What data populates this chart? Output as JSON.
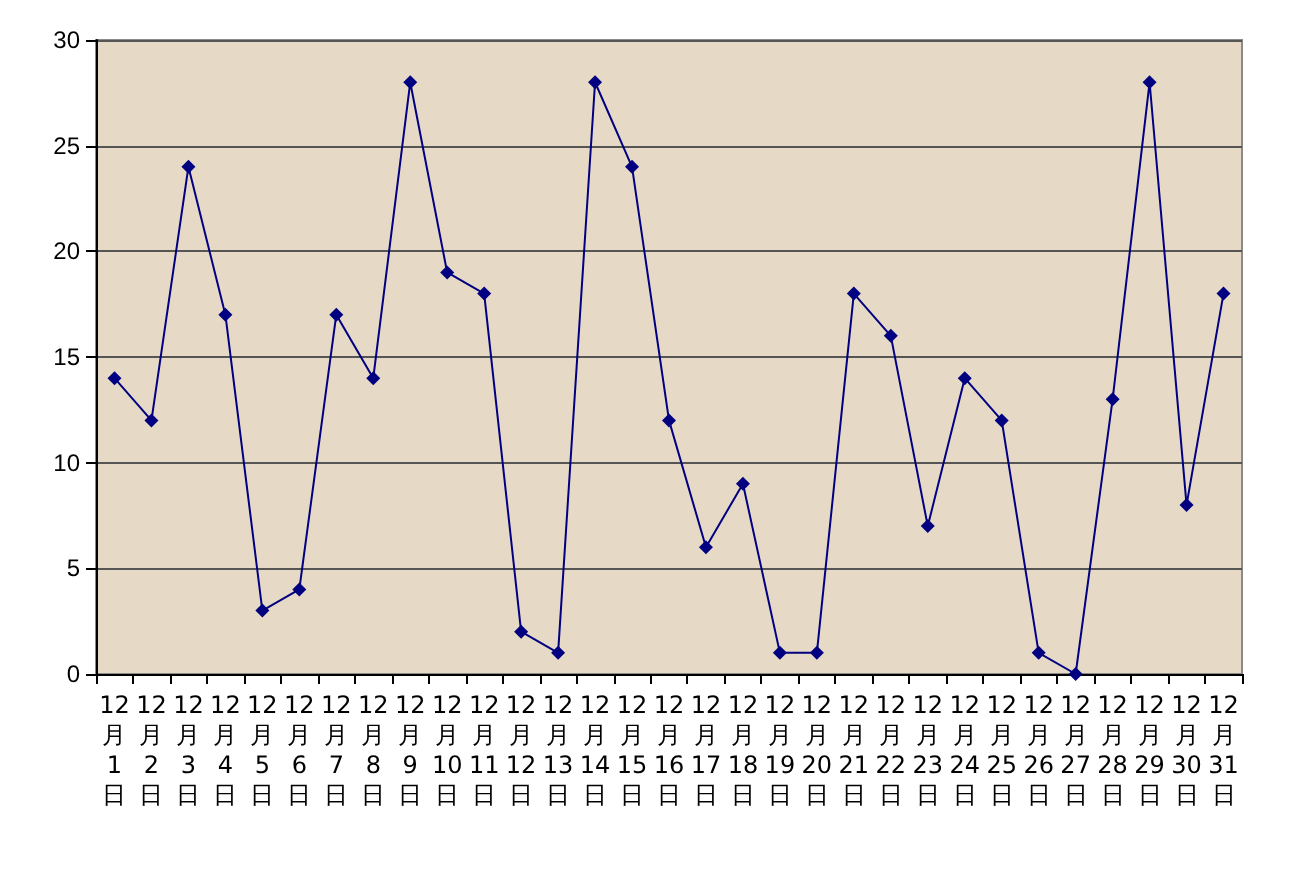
{
  "chart_data": {
    "type": "line",
    "categories": [
      "12月1日",
      "12月2日",
      "12月3日",
      "12月4日",
      "12月5日",
      "12月6日",
      "12月7日",
      "12月8日",
      "12月9日",
      "12月10日",
      "12月11日",
      "12月12日",
      "12月13日",
      "12月14日",
      "12月15日",
      "12月16日",
      "12月17日",
      "12月18日",
      "12月19日",
      "12月20日",
      "12月21日",
      "12月22日",
      "12月23日",
      "12月24日",
      "12月25日",
      "12月26日",
      "12月27日",
      "12月28日",
      "12月29日",
      "12月30日",
      "12月31日"
    ],
    "series": [
      {
        "color": "#000080",
        "values": [
          14,
          12,
          24,
          17,
          3,
          4,
          17,
          14,
          28,
          19,
          18,
          2,
          1,
          28,
          24,
          12,
          6,
          9,
          1,
          1,
          18,
          16,
          7,
          14,
          12,
          1,
          0,
          13,
          28,
          8,
          18
        ]
      }
    ],
    "ylim": [
      0,
      30
    ],
    "yticks": [
      0,
      5,
      10,
      15,
      20,
      25,
      30
    ],
    "grid": "y",
    "marker": "diamond",
    "line_style": "solid"
  }
}
